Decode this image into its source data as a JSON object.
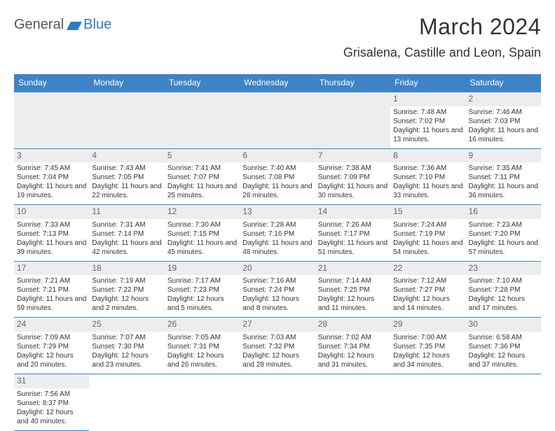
{
  "logo": {
    "part1": "General",
    "part2": "Blue"
  },
  "header": {
    "title": "March 2024",
    "subtitle": "Grisalena, Castille and Leon, Spain"
  },
  "colors": {
    "accent": "#3d84c6",
    "header_bg": "#3d84c6",
    "daynum_bg": "#ededed",
    "text": "#333333",
    "logo_gray": "#555555",
    "logo_blue": "#2f7ac0"
  },
  "days_of_week": [
    "Sunday",
    "Monday",
    "Tuesday",
    "Wednesday",
    "Thursday",
    "Friday",
    "Saturday"
  ],
  "calendar": {
    "first_day_col": 5,
    "days": [
      {
        "n": 1,
        "sr": "7:48 AM",
        "ss": "7:02 PM",
        "dl": "11 hours and 13 minutes."
      },
      {
        "n": 2,
        "sr": "7:46 AM",
        "ss": "7:03 PM",
        "dl": "11 hours and 16 minutes."
      },
      {
        "n": 3,
        "sr": "7:45 AM",
        "ss": "7:04 PM",
        "dl": "11 hours and 19 minutes."
      },
      {
        "n": 4,
        "sr": "7:43 AM",
        "ss": "7:05 PM",
        "dl": "11 hours and 22 minutes."
      },
      {
        "n": 5,
        "sr": "7:41 AM",
        "ss": "7:07 PM",
        "dl": "11 hours and 25 minutes."
      },
      {
        "n": 6,
        "sr": "7:40 AM",
        "ss": "7:08 PM",
        "dl": "11 hours and 28 minutes."
      },
      {
        "n": 7,
        "sr": "7:38 AM",
        "ss": "7:09 PM",
        "dl": "11 hours and 30 minutes."
      },
      {
        "n": 8,
        "sr": "7:36 AM",
        "ss": "7:10 PM",
        "dl": "11 hours and 33 minutes."
      },
      {
        "n": 9,
        "sr": "7:35 AM",
        "ss": "7:11 PM",
        "dl": "11 hours and 36 minutes."
      },
      {
        "n": 10,
        "sr": "7:33 AM",
        "ss": "7:13 PM",
        "dl": "11 hours and 39 minutes."
      },
      {
        "n": 11,
        "sr": "7:31 AM",
        "ss": "7:14 PM",
        "dl": "11 hours and 42 minutes."
      },
      {
        "n": 12,
        "sr": "7:30 AM",
        "ss": "7:15 PM",
        "dl": "11 hours and 45 minutes."
      },
      {
        "n": 13,
        "sr": "7:28 AM",
        "ss": "7:16 PM",
        "dl": "11 hours and 48 minutes."
      },
      {
        "n": 14,
        "sr": "7:26 AM",
        "ss": "7:17 PM",
        "dl": "11 hours and 51 minutes."
      },
      {
        "n": 15,
        "sr": "7:24 AM",
        "ss": "7:19 PM",
        "dl": "11 hours and 54 minutes."
      },
      {
        "n": 16,
        "sr": "7:23 AM",
        "ss": "7:20 PM",
        "dl": "11 hours and 57 minutes."
      },
      {
        "n": 17,
        "sr": "7:21 AM",
        "ss": "7:21 PM",
        "dl": "11 hours and 59 minutes."
      },
      {
        "n": 18,
        "sr": "7:19 AM",
        "ss": "7:22 PM",
        "dl": "12 hours and 2 minutes."
      },
      {
        "n": 19,
        "sr": "7:17 AM",
        "ss": "7:23 PM",
        "dl": "12 hours and 5 minutes."
      },
      {
        "n": 20,
        "sr": "7:16 AM",
        "ss": "7:24 PM",
        "dl": "12 hours and 8 minutes."
      },
      {
        "n": 21,
        "sr": "7:14 AM",
        "ss": "7:25 PM",
        "dl": "12 hours and 11 minutes."
      },
      {
        "n": 22,
        "sr": "7:12 AM",
        "ss": "7:27 PM",
        "dl": "12 hours and 14 minutes."
      },
      {
        "n": 23,
        "sr": "7:10 AM",
        "ss": "7:28 PM",
        "dl": "12 hours and 17 minutes."
      },
      {
        "n": 24,
        "sr": "7:09 AM",
        "ss": "7:29 PM",
        "dl": "12 hours and 20 minutes."
      },
      {
        "n": 25,
        "sr": "7:07 AM",
        "ss": "7:30 PM",
        "dl": "12 hours and 23 minutes."
      },
      {
        "n": 26,
        "sr": "7:05 AM",
        "ss": "7:31 PM",
        "dl": "12 hours and 26 minutes."
      },
      {
        "n": 27,
        "sr": "7:03 AM",
        "ss": "7:32 PM",
        "dl": "12 hours and 28 minutes."
      },
      {
        "n": 28,
        "sr": "7:02 AM",
        "ss": "7:34 PM",
        "dl": "12 hours and 31 minutes."
      },
      {
        "n": 29,
        "sr": "7:00 AM",
        "ss": "7:35 PM",
        "dl": "12 hours and 34 minutes."
      },
      {
        "n": 30,
        "sr": "6:58 AM",
        "ss": "7:36 PM",
        "dl": "12 hours and 37 minutes."
      },
      {
        "n": 31,
        "sr": "7:56 AM",
        "ss": "8:37 PM",
        "dl": "12 hours and 40 minutes."
      }
    ]
  },
  "labels": {
    "sunrise": "Sunrise: ",
    "sunset": "Sunset: ",
    "daylight": "Daylight: "
  }
}
